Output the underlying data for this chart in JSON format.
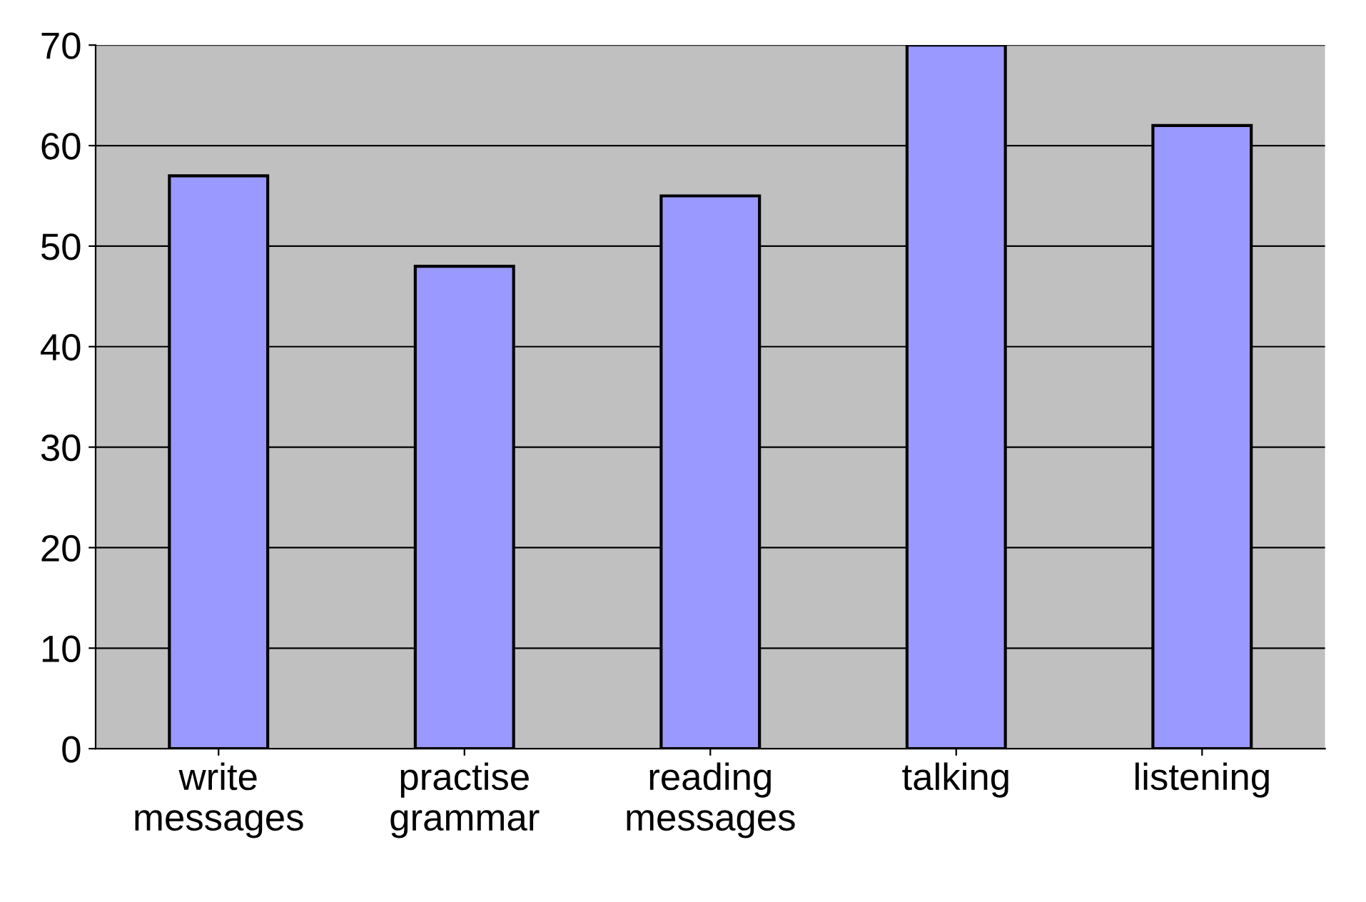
{
  "chart_data": {
    "type": "bar",
    "categories": [
      "write\nmessages",
      "practise\ngrammar",
      "reading\nmessages",
      "talking",
      "listening"
    ],
    "values": [
      57,
      48,
      55,
      70,
      62
    ],
    "color": "#9999ff",
    "ylim": [
      0,
      70
    ],
    "yticks": [
      0,
      10,
      20,
      30,
      40,
      50,
      60,
      70
    ],
    "grid": "y"
  }
}
